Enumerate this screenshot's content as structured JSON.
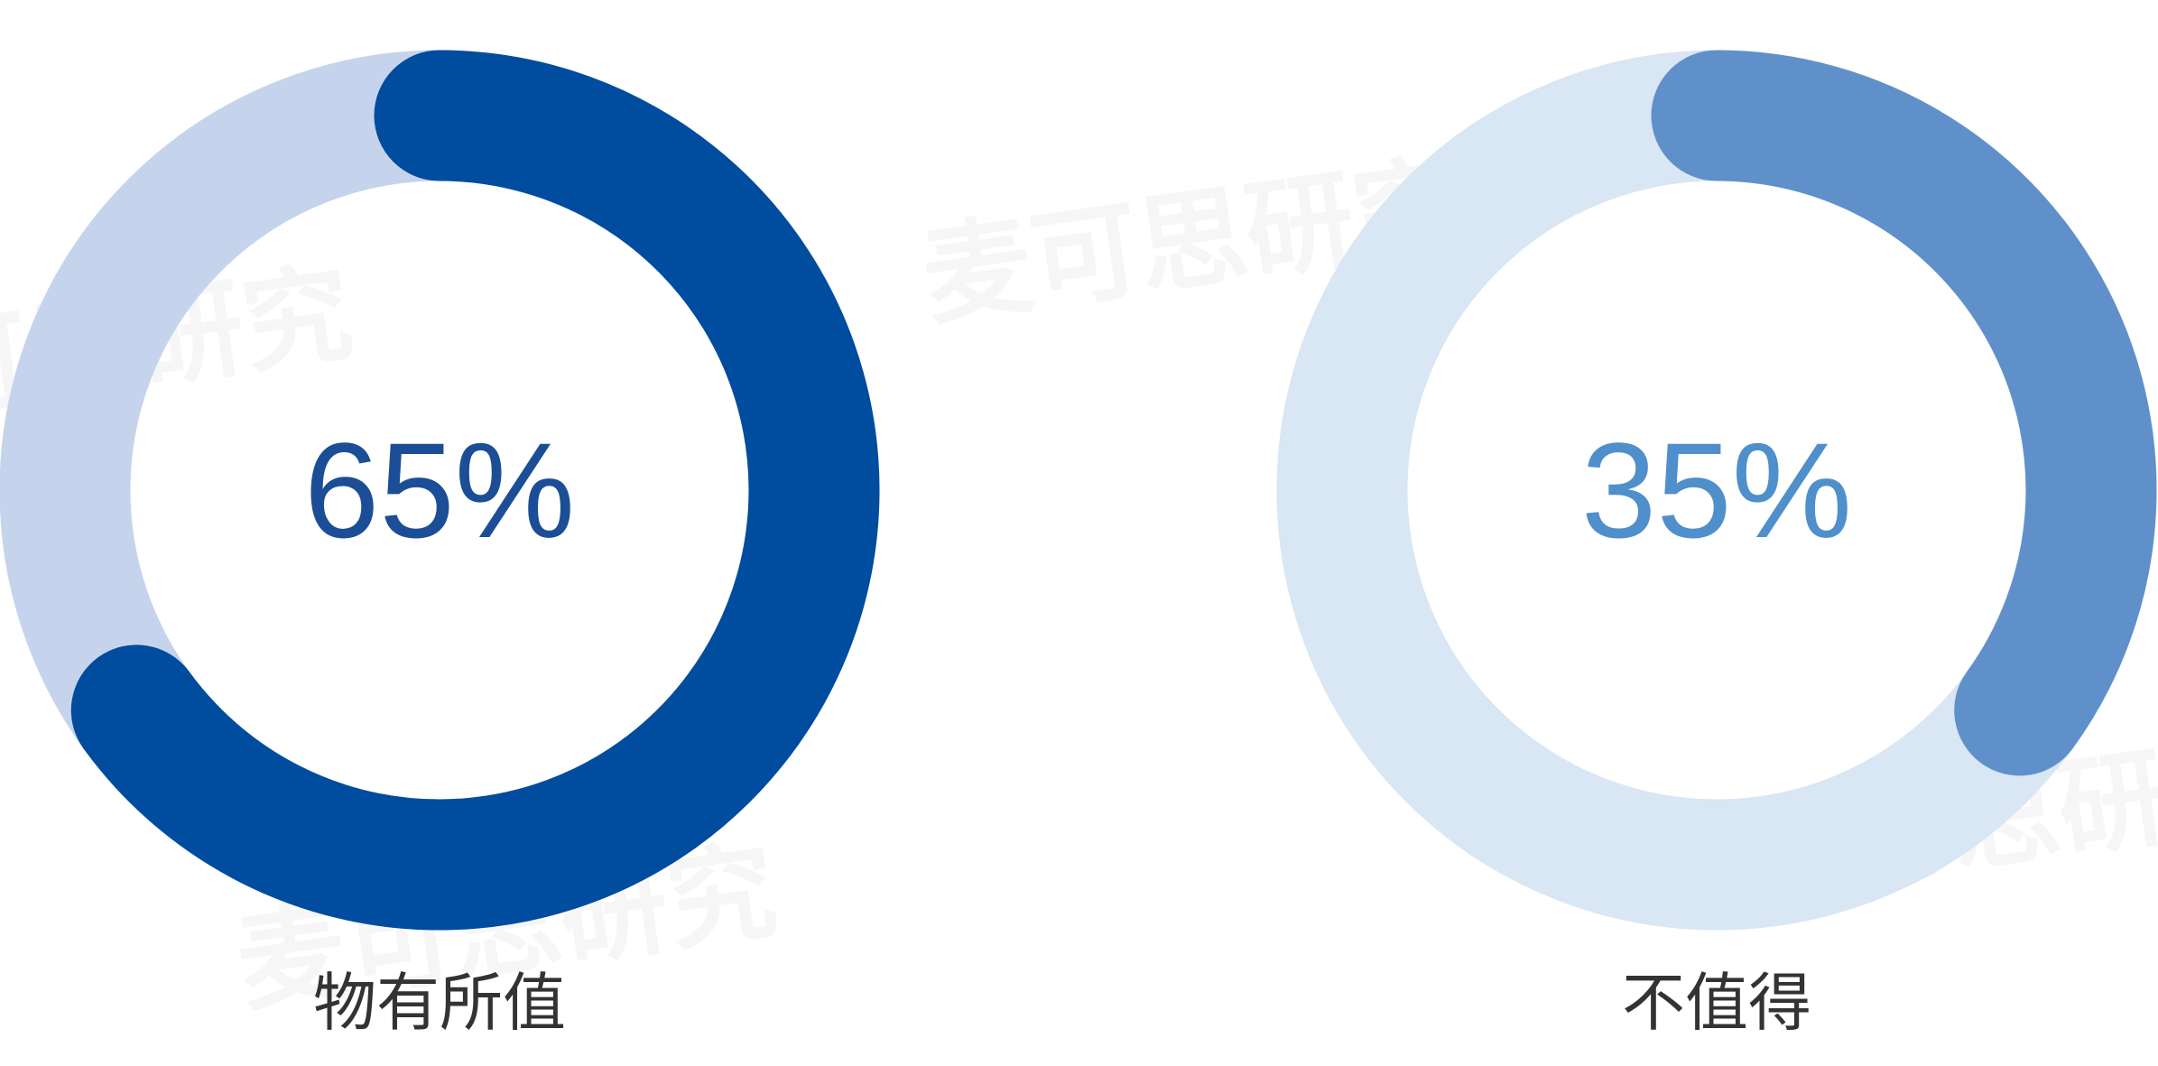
{
  "watermark": "麦可思研究",
  "chart_data": [
    {
      "type": "pie",
      "variant": "donut",
      "label": "物有所值",
      "value_label": "65%",
      "value": 65,
      "colors": {
        "fill": "#004C9E",
        "track": "#C5D4EC",
        "text": "#1B4E96"
      }
    },
    {
      "type": "pie",
      "variant": "donut",
      "label": "不值得",
      "value_label": "35%",
      "value": 35,
      "colors": {
        "fill": "#6090CA",
        "track": "#D9E6F3",
        "text": "#4F8FCB"
      }
    }
  ]
}
